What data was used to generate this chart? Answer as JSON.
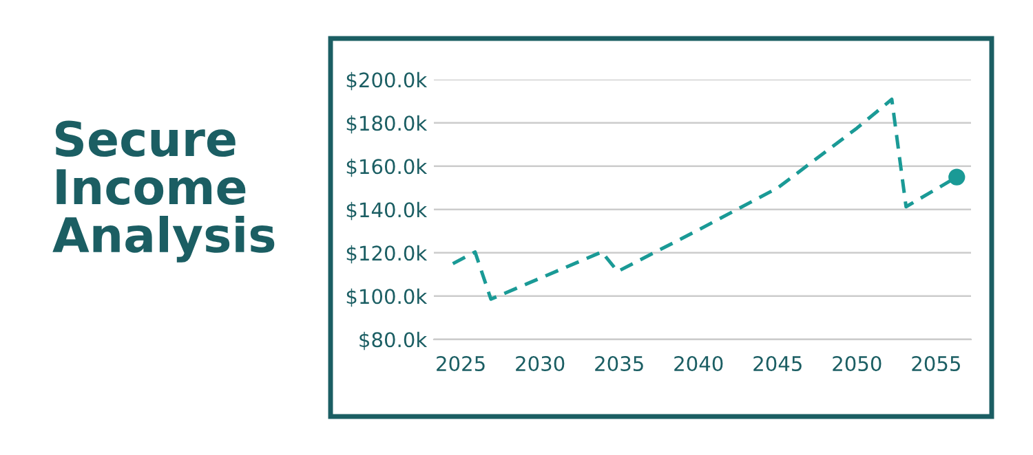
{
  "chart_data": {
    "type": "line",
    "title": "Secure\nIncome\nAnalysis",
    "series": [
      {
        "color": "#1a9a96",
        "line_style": "dashed",
        "marker": "none",
        "x": [
          2024.5,
          2025.9,
          2026.9,
          2033.9,
          2034.9,
          2040,
          2045,
          2050,
          2052.2,
          2053.1,
          2056.3
        ],
        "values": [
          115,
          120.4,
          98.6,
          120.4,
          111.4,
          130.6,
          150,
          177.6,
          190.9,
          141.3,
          155
        ]
      },
      {
        "type": "scatter",
        "color": "#1a9a96",
        "marker": "circle",
        "x": [
          2056.3
        ],
        "values": [
          155
        ]
      }
    ],
    "xlim": [
      2023.3,
      2057.2
    ],
    "xticks": [
      2025,
      2030,
      2035,
      2040,
      2045,
      2050,
      2055
    ],
    "ylim": [
      80,
      200
    ],
    "yticks": [
      {
        "value": 80,
        "label": "$80.0k"
      },
      {
        "value": 100,
        "label": "$100.0k"
      },
      {
        "value": 120,
        "label": "$120.0k"
      },
      {
        "value": 140,
        "label": "$140.0k"
      },
      {
        "value": 160,
        "label": "$160.0k"
      },
      {
        "value": 180,
        "label": "$180.0k"
      },
      {
        "value": 200,
        "label": "$200.0k"
      }
    ],
    "grid": "y",
    "legend": false
  }
}
